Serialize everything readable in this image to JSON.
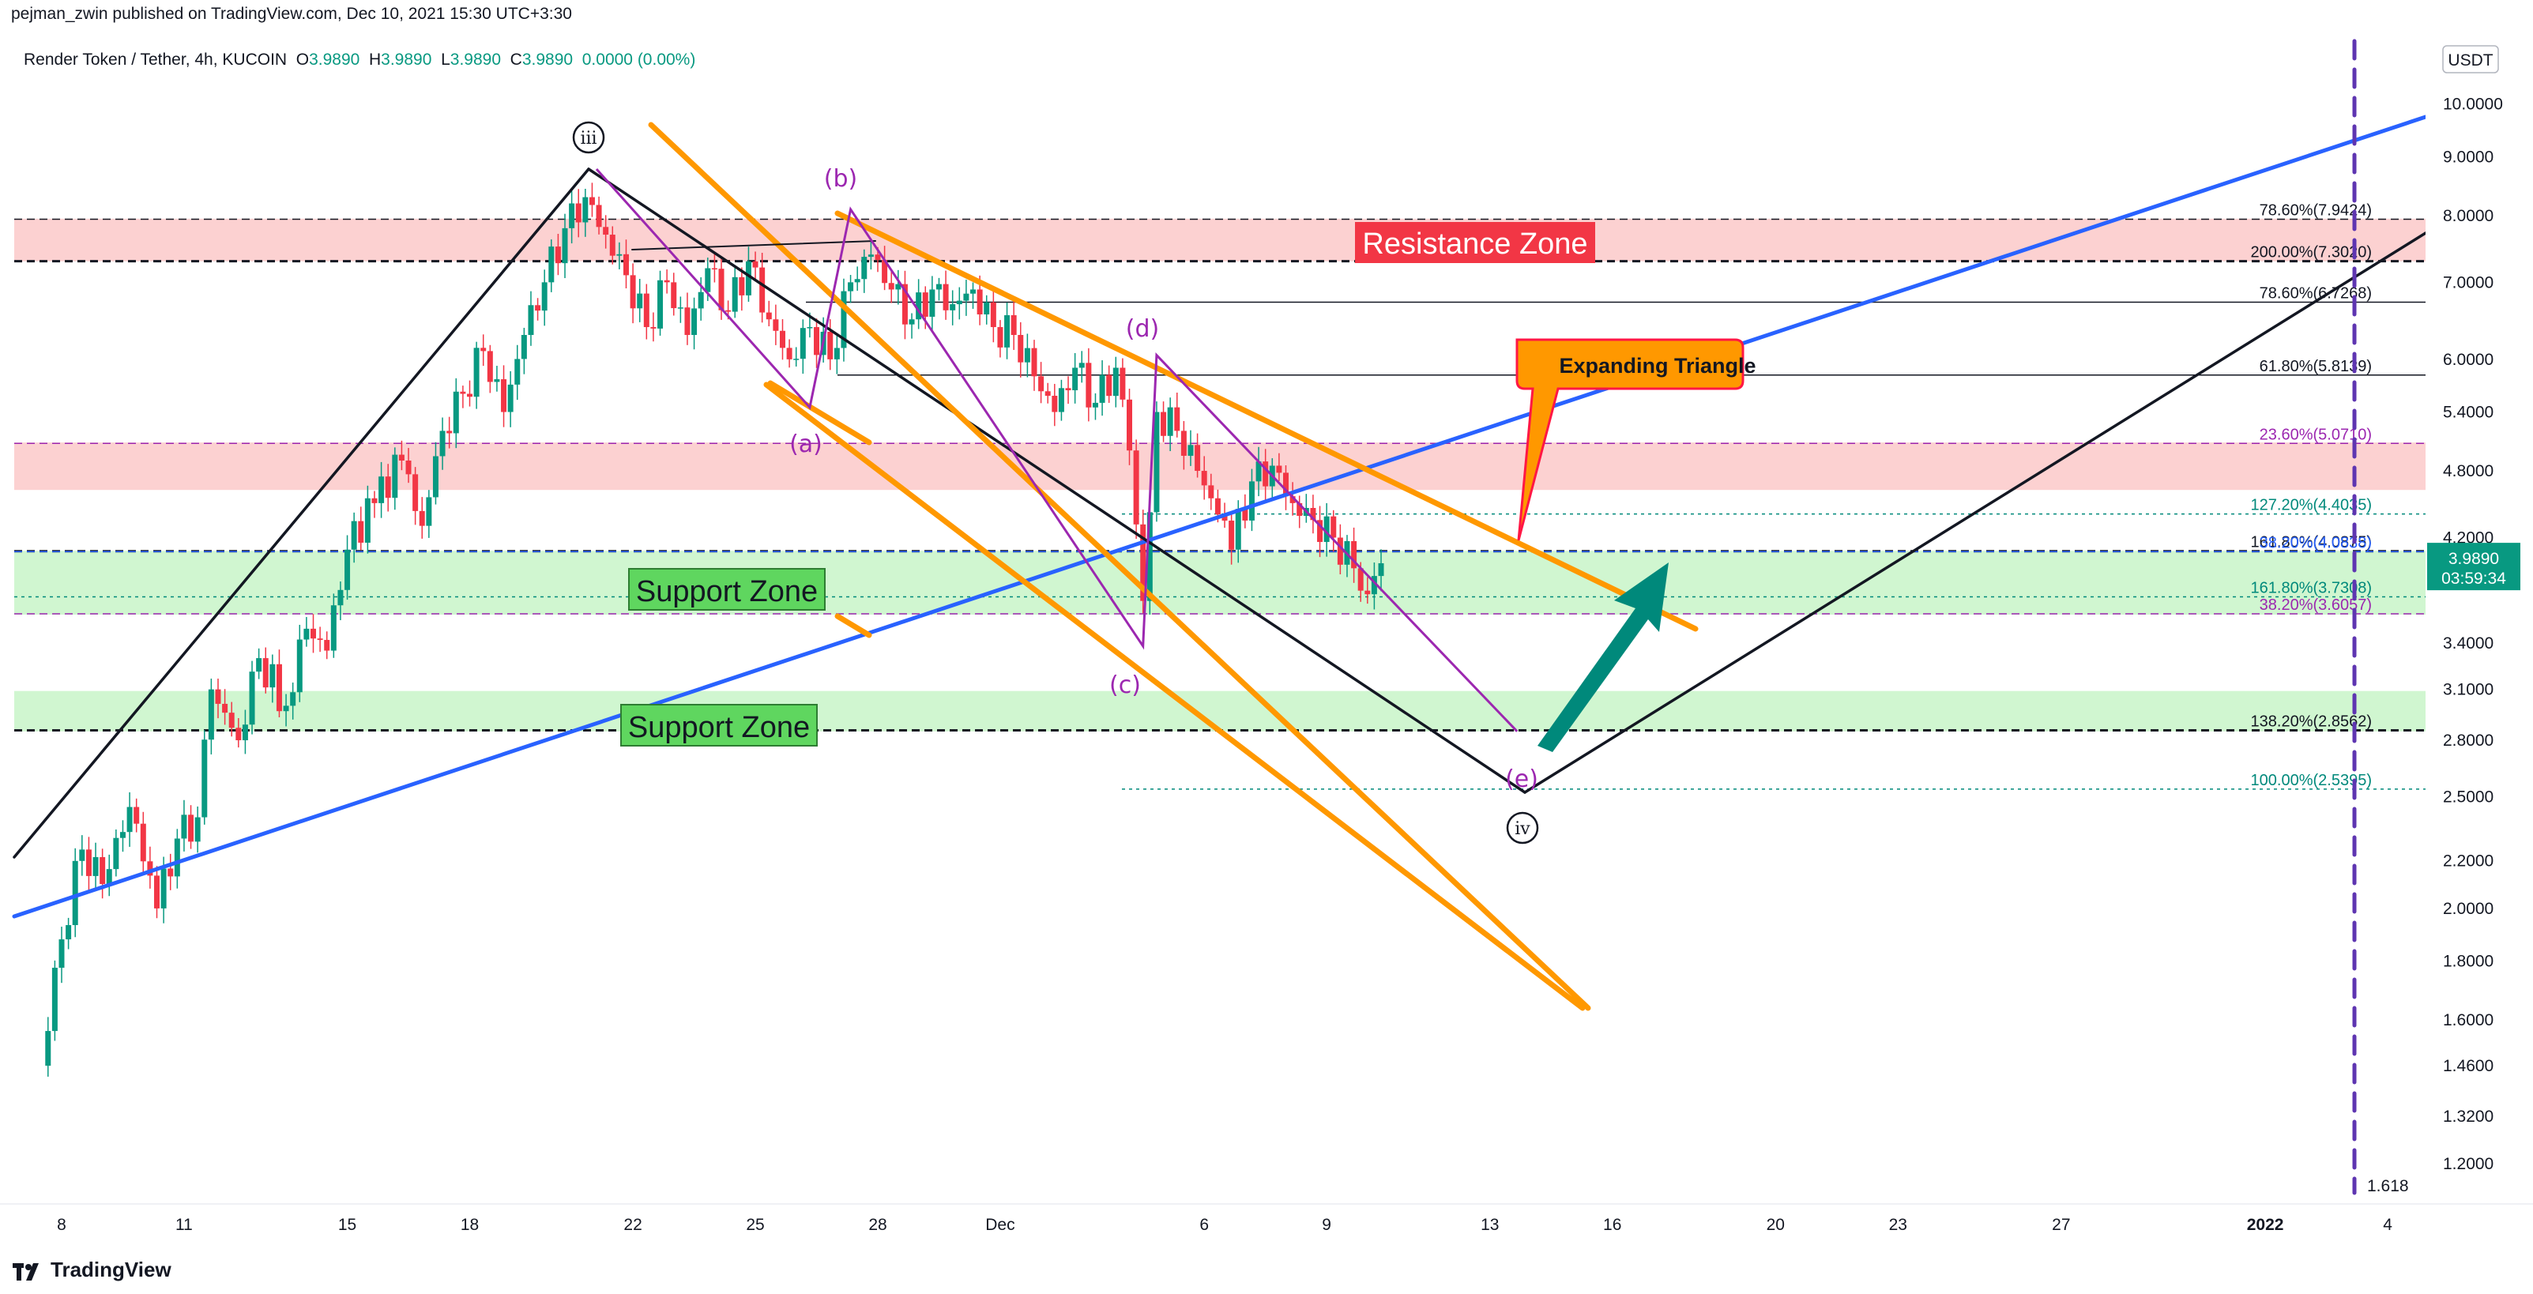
{
  "header": {
    "published": "pejman_zwin published on TradingView.com, Dec 10, 2021 15:30 UTC+3:30"
  },
  "symbol": {
    "name": "Render Token / Tether, 4h, KUCOIN",
    "o_key": "O",
    "o_val": "3.9890",
    "h_key": "H",
    "h_val": "3.9890",
    "l_key": "L",
    "l_val": "3.9890",
    "c_key": "C",
    "c_val": "3.9890",
    "change": "0.0000 (0.00%)"
  },
  "currency": "USDT",
  "last_price": {
    "price": "3.9890",
    "countdown": "03:59:34"
  },
  "footer": {
    "brand": "TradingView"
  },
  "colors": {
    "up": "#089981",
    "down": "#f23645",
    "blue_trend": "#2962ff",
    "orange": "#ff9800",
    "purple": "#9c27b0",
    "teal_arrow": "#00897b",
    "resistance_fill": "#fcc9c9",
    "support_fill": "#c8f5c8"
  },
  "chart_data": {
    "type": "candlestick",
    "scale": "log",
    "ylim": [
      1.15,
      11.2
    ],
    "y_ticks": [
      "10.0000",
      "9.0000",
      "8.0000",
      "7.0000",
      "6.0000",
      "5.4000",
      "4.8000",
      "4.2000",
      "3.4000",
      "3.1000",
      "2.8000",
      "2.5000",
      "2.2000",
      "2.0000",
      "1.8000",
      "1.6000",
      "1.4600",
      "1.3200",
      "1.2000"
    ],
    "x_ticks": [
      "8",
      "11",
      "15",
      "18",
      "22",
      "25",
      "28",
      "Dec",
      "6",
      "9",
      "13",
      "16",
      "20",
      "23",
      "27",
      "2022",
      "4"
    ],
    "x_tick_dates": [
      "2021-11-08",
      "2021-11-11",
      "2021-11-15",
      "2021-11-18",
      "2021-11-22",
      "2021-11-25",
      "2021-11-28",
      "2021-12-01",
      "2021-12-06",
      "2021-12-09",
      "2021-12-13",
      "2021-12-16",
      "2021-12-20",
      "2021-12-23",
      "2021-12-27",
      "2022-01-01",
      "2022-01-04"
    ],
    "price_path": [
      [
        "2021-11-07T12:00",
        1.46
      ],
      [
        "2021-11-08T00:00",
        1.88
      ],
      [
        "2021-11-08T12:00",
        2.25
      ],
      [
        "2021-11-09T00:00",
        2.1
      ],
      [
        "2021-11-09T16:00",
        2.45
      ],
      [
        "2021-11-10T08:00",
        2.0
      ],
      [
        "2021-11-10T20:00",
        2.3
      ],
      [
        "2021-11-11T08:00",
        2.4
      ],
      [
        "2021-11-11T16:00",
        3.1
      ],
      [
        "2021-11-12T08:00",
        2.8
      ],
      [
        "2021-11-12T20:00",
        3.3
      ],
      [
        "2021-11-13T12:00",
        3.0
      ],
      [
        "2021-11-14T00:00",
        3.5
      ],
      [
        "2021-11-14T12:00",
        3.35
      ],
      [
        "2021-11-15T00:00",
        4.1
      ],
      [
        "2021-11-15T16:00",
        4.5
      ],
      [
        "2021-11-16T08:00",
        4.9
      ],
      [
        "2021-11-16T20:00",
        4.3
      ],
      [
        "2021-11-17T08:00",
        5.2
      ],
      [
        "2021-11-17T20:00",
        5.6
      ],
      [
        "2021-11-18T08:00",
        6.1
      ],
      [
        "2021-11-18T20:00",
        5.4
      ],
      [
        "2021-11-19T08:00",
        6.3
      ],
      [
        "2021-11-19T20:00",
        7.0
      ],
      [
        "2021-11-20T08:00",
        7.8
      ],
      [
        "2021-11-20T20:00",
        8.3
      ],
      [
        "2021-11-21T08:00",
        7.7
      ],
      [
        "2021-11-21T20:00",
        7.1
      ],
      [
        "2021-11-22T08:00",
        6.4
      ],
      [
        "2021-11-22T20:00",
        7.0
      ],
      [
        "2021-11-23T08:00",
        6.3
      ],
      [
        "2021-11-23T20:00",
        7.2
      ],
      [
        "2021-11-24T08:00",
        6.6
      ],
      [
        "2021-11-24T20:00",
        7.3
      ],
      [
        "2021-11-25T08:00",
        6.5
      ],
      [
        "2021-11-25T20:00",
        6.0
      ],
      [
        "2021-11-26T08:00",
        6.4
      ],
      [
        "2021-11-26T20:00",
        6.0
      ],
      [
        "2021-11-27T08:00",
        7.0
      ],
      [
        "2021-11-27T20:00",
        7.4
      ],
      [
        "2021-11-28T08:00",
        6.9
      ],
      [
        "2021-11-28T20:00",
        6.5
      ],
      [
        "2021-11-29T08:00",
        6.9
      ],
      [
        "2021-11-29T20:00",
        6.7
      ],
      [
        "2021-11-30T08:00",
        6.9
      ],
      [
        "2021-11-30T20:00",
        6.4
      ],
      [
        "2021-12-01T08:00",
        6.3
      ],
      [
        "2021-12-01T20:00",
        5.8
      ],
      [
        "2021-12-02T08:00",
        5.4
      ],
      [
        "2021-12-02T20:00",
        5.9
      ],
      [
        "2021-12-03T08:00",
        5.5
      ],
      [
        "2021-12-03T20:00",
        5.9
      ],
      [
        "2021-12-04T04:00",
        5.0
      ],
      [
        "2021-12-04T12:00",
        3.7
      ],
      [
        "2021-12-04T20:00",
        5.4
      ],
      [
        "2021-12-05T08:00",
        5.2
      ],
      [
        "2021-12-05T20:00",
        4.8
      ],
      [
        "2021-12-06T08:00",
        4.4
      ],
      [
        "2021-12-06T16:00",
        4.1
      ],
      [
        "2021-12-07T04:00",
        4.7
      ],
      [
        "2021-12-07T16:00",
        4.85
      ],
      [
        "2021-12-08T04:00",
        4.5
      ],
      [
        "2021-12-08T16:00",
        4.35
      ],
      [
        "2021-12-09T04:00",
        4.2
      ],
      [
        "2021-12-09T16:00",
        3.95
      ],
      [
        "2021-12-10T00:00",
        3.75
      ],
      [
        "2021-12-10T08:00",
        3.99
      ]
    ],
    "fib_levels": [
      {
        "label": "78.60%(7.9424)",
        "price": 7.9424,
        "color": "#131722"
      },
      {
        "label": "200.00%(7.3020)",
        "price": 7.302,
        "color": "#131722"
      },
      {
        "label": "78.60%(6.7268)",
        "price": 6.7268,
        "color": "#131722"
      },
      {
        "label": "61.80%(5.8139)",
        "price": 5.8139,
        "color": "#131722"
      },
      {
        "label": "23.60%(5.0710)",
        "price": 5.071,
        "color": "#9c27b0"
      },
      {
        "label": "127.20%(4.4035)",
        "price": 4.4035,
        "color": "#00897b"
      },
      {
        "label": "161.80%(4.0875)",
        "price": 4.0875,
        "color": "#131722"
      },
      {
        "label": "38.20%(4.0838)",
        "price": 4.0838,
        "color": "#2962ff"
      },
      {
        "label": "161.80%(3.7308)",
        "price": 3.7308,
        "color": "#00897b"
      },
      {
        "label": "38.20%(3.6057)",
        "price": 3.6057,
        "color": "#9c27b0"
      },
      {
        "label": "138.20%(2.8562)",
        "price": 2.8562,
        "color": "#131722"
      },
      {
        "label": "100.00%(2.5395)",
        "price": 2.5395,
        "color": "#00897b"
      }
    ],
    "zones": [
      {
        "kind": "resistance",
        "top": 7.95,
        "bottom": 7.3
      },
      {
        "kind": "resistance",
        "top": 5.08,
        "bottom": 4.62
      },
      {
        "kind": "support",
        "top": 4.09,
        "bottom": 3.6
      },
      {
        "kind": "support",
        "top": 3.09,
        "bottom": 2.85
      }
    ],
    "annotations": {
      "resistance_zone": "Resistance Zone",
      "support_zone_1": "Support Zone",
      "support_zone_2": "Support Zone",
      "expanding_triangle": "Expanding Triangle",
      "fib_time": "1.618",
      "wave_iii": "iii",
      "wave_iv": "iv",
      "wave_a": "(a)",
      "wave_b": "(b)",
      "wave_c": "(c)",
      "wave_d": "(d)",
      "wave_e": "(e)"
    },
    "waves": [
      {
        "label": "iii",
        "date": "2021-11-20T20:00",
        "price": 8.8
      },
      {
        "label": "(a)",
        "date": "2021-11-26T08:00",
        "price": 5.45
      },
      {
        "label": "(b)",
        "date": "2021-11-27T08:00",
        "price": 8.1
      },
      {
        "label": "(c)",
        "date": "2021-12-04T12:00",
        "price": 3.38
      },
      {
        "label": "(d)",
        "date": "2021-12-04T20:00",
        "price": 6.05
      },
      {
        "label": "(e)",
        "date": "2021-12-13T16:00",
        "price": 2.85
      },
      {
        "label": "iv",
        "date": "2021-12-14T00:00",
        "price": 2.6
      }
    ]
  }
}
